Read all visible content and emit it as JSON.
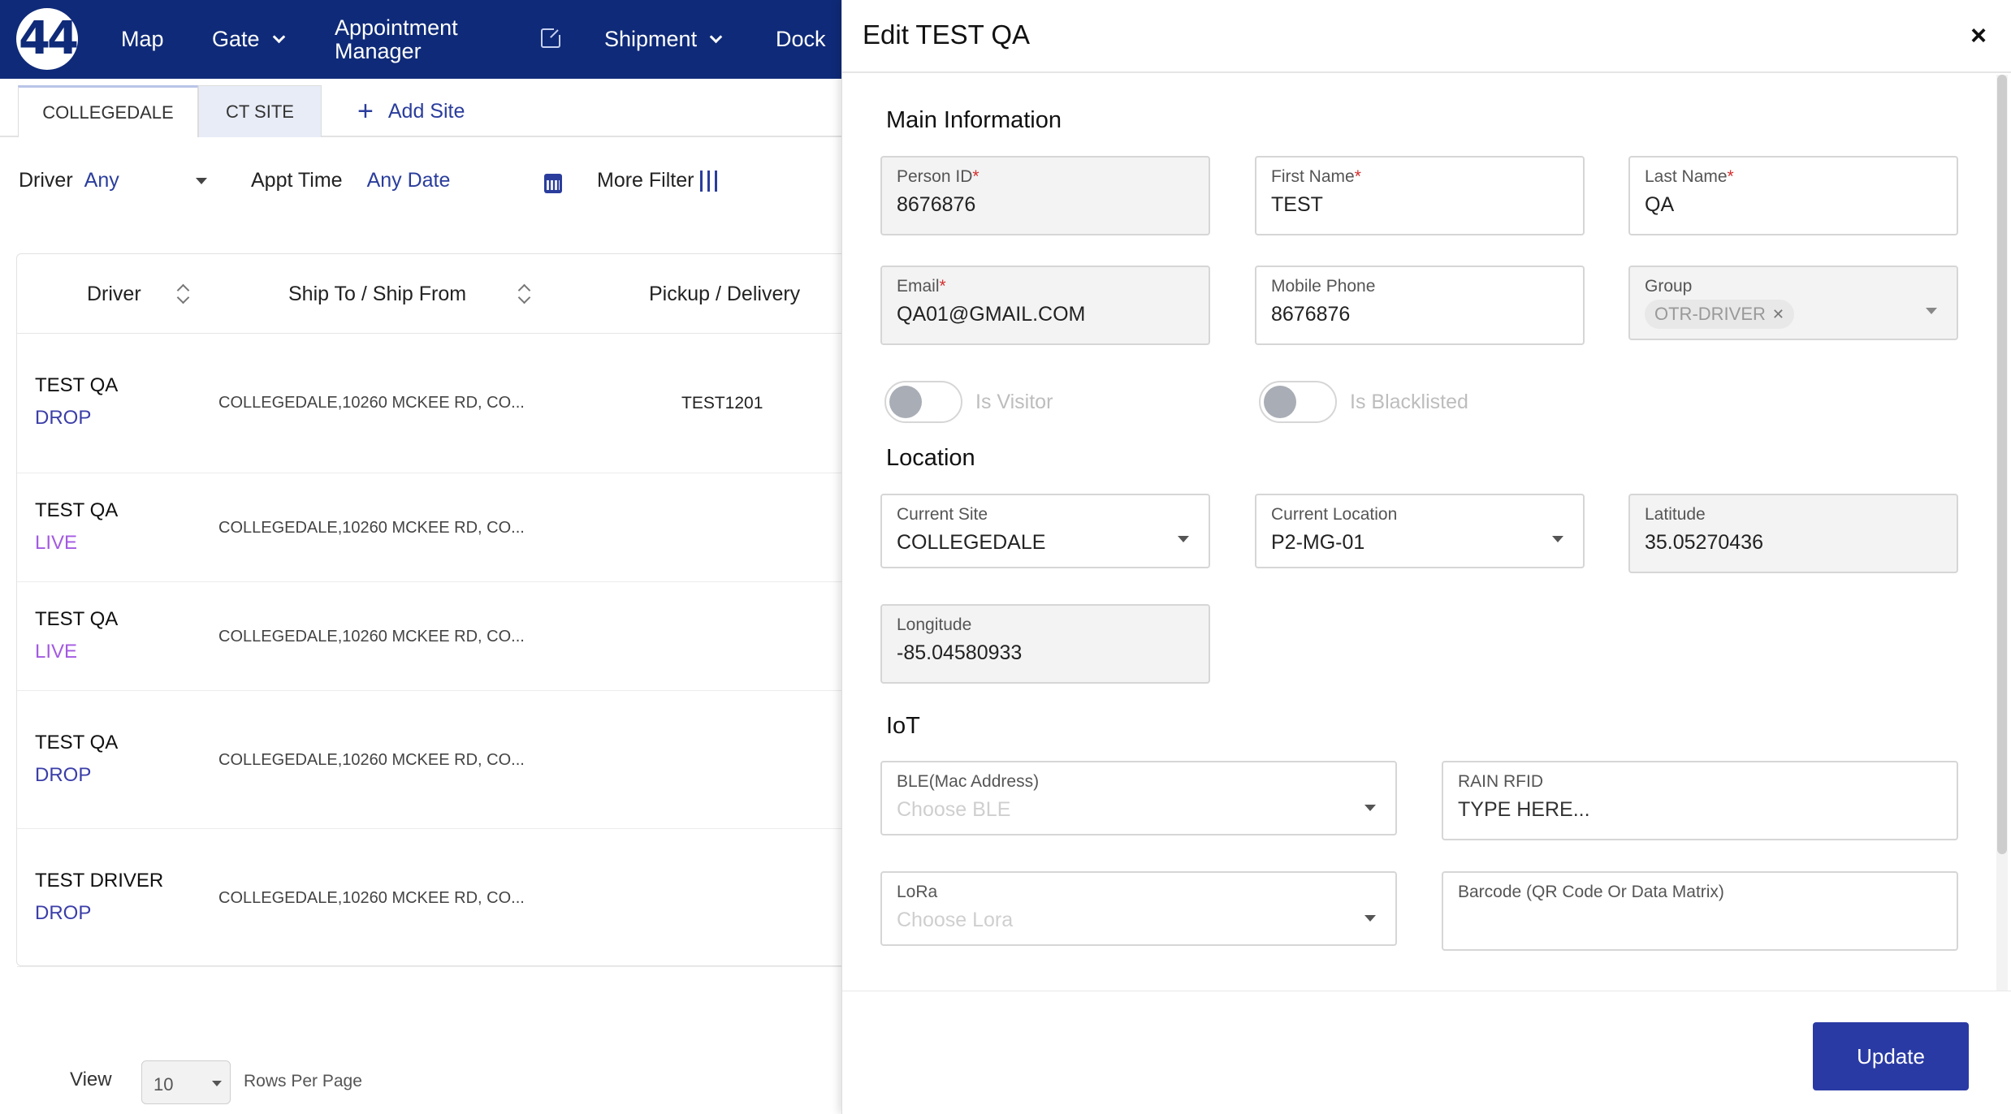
{
  "nav": {
    "logo_text": "44",
    "items": [
      {
        "label": "Map"
      },
      {
        "label": "Gate"
      },
      {
        "label": "Appointment Manager"
      },
      {
        "label": "Shipment"
      },
      {
        "label": "Dock"
      }
    ]
  },
  "site_tabs": {
    "tabs": [
      "COLLEGEDALE",
      "CT SITE"
    ],
    "add_site": "Add Site"
  },
  "filters": {
    "driver_label": "Driver",
    "driver_value": "Any",
    "appt_label": "Appt Time",
    "appt_value": "Any Date",
    "more_filter": "More Filter"
  },
  "table": {
    "headers": [
      "Driver",
      "Ship To / Ship From",
      "Pickup / Delivery"
    ],
    "rows": [
      {
        "driver": "TEST QA",
        "type": "DROP",
        "address": "COLLEGEDALE,10260 MCKEE RD, CO...",
        "pickup": "TEST1201"
      },
      {
        "driver": "TEST QA",
        "type": "LIVE",
        "address": "COLLEGEDALE,10260 MCKEE RD, CO...",
        "pickup": ""
      },
      {
        "driver": "TEST QA",
        "type": "LIVE",
        "address": "COLLEGEDALE,10260 MCKEE RD, CO...",
        "pickup": ""
      },
      {
        "driver": "TEST QA",
        "type": "DROP",
        "address": "COLLEGEDALE,10260 MCKEE RD, CO...",
        "pickup": ""
      },
      {
        "driver": "TEST DRIVER",
        "type": "DROP",
        "address": "COLLEGEDALE,10260 MCKEE RD, CO...",
        "pickup": ""
      }
    ]
  },
  "pager": {
    "view_label": "View",
    "rows_value": "10",
    "rows_label": "Rows Per Page"
  },
  "drawer": {
    "title": "Edit TEST QA",
    "close": "×",
    "sections": {
      "main": "Main Information",
      "location": "Location",
      "iot": "IoT"
    },
    "fields": {
      "person_id": {
        "label": "Person ID",
        "value": "8676876"
      },
      "first_name": {
        "label": "First Name",
        "value": "TEST"
      },
      "last_name": {
        "label": "Last Name",
        "value": "QA"
      },
      "email": {
        "label": "Email",
        "value": "QA01@GMAIL.COM"
      },
      "mobile": {
        "label": "Mobile Phone",
        "value": "8676876"
      },
      "group": {
        "label": "Group",
        "chip": "OTR-DRIVER"
      },
      "is_visitor": {
        "label": "Is Visitor"
      },
      "is_blacklisted": {
        "label": "Is Blacklisted"
      },
      "current_site": {
        "label": "Current Site",
        "value": "COLLEGEDALE"
      },
      "current_location": {
        "label": "Current Location",
        "value": "P2-MG-01"
      },
      "latitude": {
        "label": "Latitude",
        "value": "35.05270436"
      },
      "longitude": {
        "label": "Longitude",
        "value": "-85.04580933"
      },
      "ble": {
        "label": "BLE(Mac Address)",
        "placeholder": "Choose BLE"
      },
      "rain_rfid": {
        "label": "RAIN RFID",
        "placeholder": "TYPE HERE..."
      },
      "lora": {
        "label": "LoRa",
        "placeholder": "Choose Lora"
      },
      "barcode": {
        "label": "Barcode (QR Code Or Data Matrix)"
      }
    },
    "update_label": "Update"
  },
  "colors": {
    "nav_bg": "#0f2a78",
    "accent": "#2a3aa4",
    "drop": "#3b3ea8",
    "live": "#a35ae0",
    "required": "#d32f2f"
  }
}
